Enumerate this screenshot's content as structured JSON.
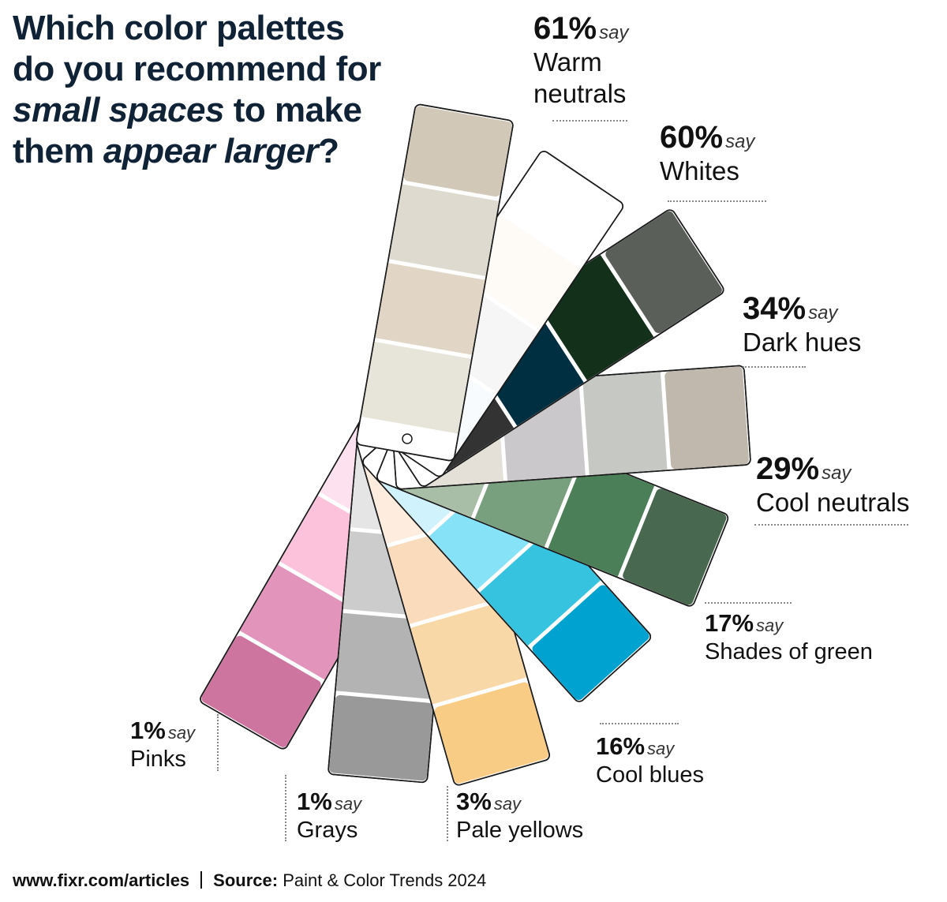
{
  "title": {
    "line1": "Which color palettes",
    "line2": "do you recommend for",
    "line3_em": "small spaces",
    "line3_rest": " to make",
    "line4_a": "them ",
    "line4_em": "appear larger",
    "line4_b": "?"
  },
  "say_word": "say",
  "chart_data": {
    "type": "bar",
    "title": "Which color palettes do you recommend for small spaces to make them appear larger?",
    "categories": [
      "Warm neutrals",
      "Whites",
      "Dark hues",
      "Cool neutrals",
      "Shades of green",
      "Cool blues",
      "Pale yellows",
      "Grays",
      "Pinks"
    ],
    "values": [
      61,
      60,
      34,
      29,
      17,
      16,
      3,
      1,
      1
    ],
    "value_labels": [
      "61%",
      "60%",
      "34%",
      "29%",
      "17%",
      "16%",
      "3%",
      "1%",
      "1%"
    ],
    "unit": "%",
    "swatch_colors": {
      "Warm neutrals": [
        "#d2c8b7",
        "#dedad0",
        "#e1d6c5",
        "#e7e4d9",
        "#ffffff"
      ],
      "Whites": [
        "#ffffff",
        "#fefbf6",
        "#f6f6f6",
        "#f8fbfd",
        "#ffffff"
      ],
      "Dark hues": [
        "#5a5f5a",
        "#13301a",
        "#002f42",
        "#333333",
        "#ffffff"
      ],
      "Cool neutrals": [
        "#c1b8ad",
        "#c5c8c3",
        "#cbc8cb",
        "#e4e0d8",
        "#ffffff"
      ],
      "Shades of green": [
        "#486850",
        "#4b7f57",
        "#78a07e",
        "#a8bea6",
        "#ffffff"
      ],
      "Cool blues": [
        "#00a2cf",
        "#35c3e0",
        "#86e2f6",
        "#d0f2fd",
        "#ffffff"
      ],
      "Pale yellows": [
        "#f9cc86",
        "#f9d8a7",
        "#fadcbd",
        "#feecde",
        "#ffffff"
      ],
      "Grays": [
        "#999999",
        "#b3b3b3",
        "#cccccc",
        "#e5e5e5",
        "#ffffff"
      ],
      "Pinks": [
        "#cd759f",
        "#e294ba",
        "#fcc2dc",
        "#fee1ef",
        "#ffffff"
      ]
    }
  },
  "footer": {
    "site": "www.fixr.com/articles",
    "source_label": "Source:",
    "source_text": " Paint & Color Trends 2024"
  }
}
